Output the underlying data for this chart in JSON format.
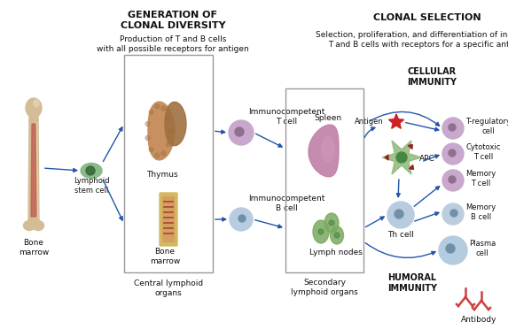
{
  "title_left": "GENERATION OF\nCLONAL DIVERSITY",
  "subtitle_left": "Production of T and B cells\nwith all possible receptors for antigen",
  "title_right": "CLONAL SELECTION",
  "subtitle_right": "Selection, proliferation, and differentiation of individual\nT and B cells with receptors for a specific antigen",
  "label_bone_marrow": "Bone\nmarrow",
  "label_lymphoid": "Lymphoid\nstem cell",
  "label_thymus": "Thymus",
  "label_bone_marrow2": "Bone\nmarrow",
  "label_central": "Central lymphoid\norgans",
  "label_t_cell": "Immunocompetent\nT cell",
  "label_b_cell": "Immunocompetent\nB cell",
  "label_spleen": "Spleen",
  "label_lymph": "Lymph nodes",
  "label_secondary": "Secondary\nlymphoid organs",
  "label_antigen": "Antigen",
  "label_apc": "APC",
  "label_th": "Th cell",
  "label_cellular": "CELLULAR\nIMMUNITY",
  "label_humoral": "HUMORAL\nIMMUNITY",
  "label_t_reg": "T-regulatory\ncell",
  "label_cytotoxic": "Cytotoxic\nT cell",
  "label_memory_t": "Memory\nT cell",
  "label_memory_b": "Memory\nB cell",
  "label_plasma": "Plasma\ncell",
  "label_antibody": "Antibody",
  "bg_color": "#ffffff",
  "arrow_color": "#2255aa",
  "text_color": "#111111",
  "cell_purple": "#c8a8cc",
  "cell_blue_light": "#b8cce0",
  "cell_green": "#7aaa60",
  "antigen_red": "#cc2222",
  "box_color": "#999999",
  "bone_color": "#d4bc96",
  "bone_dark": "#c0a070",
  "bone_marrow_red": "#c06050",
  "thymus_color": "#c89060",
  "thymus_dark": "#a07040",
  "spleen_color": "#c080a8",
  "apc_color": "#90b878",
  "antibody_color": "#cc4040",
  "nucleus_purple": "#907090",
  "nucleus_blue": "#7090a8"
}
